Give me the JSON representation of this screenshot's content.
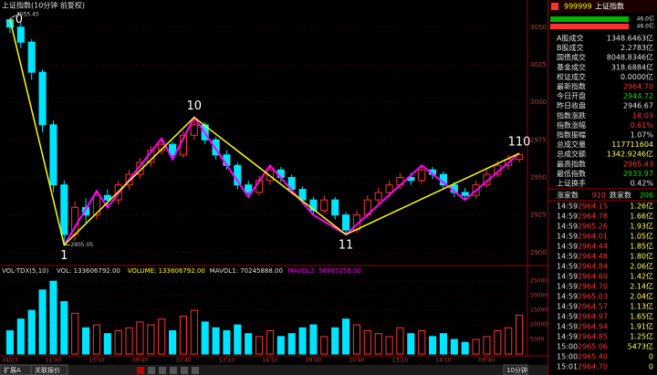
{
  "chart_data": {
    "type": "candlestick",
    "title": "上证指数(10分钟 前复权)",
    "ylim": [
      2895,
      3062
    ],
    "yticks": [
      2900,
      2925,
      2950,
      2975,
      3000,
      3025,
      3050
    ],
    "grid": true,
    "up_color": "#ff3232",
    "down_color": "#00e4ff",
    "open": [
      3055,
      3050,
      3040,
      3020,
      2985,
      2945,
      2912,
      2930,
      2925,
      2938,
      2935,
      2945,
      2952,
      2960,
      2968,
      2972,
      2965,
      2978,
      2985,
      2975,
      2965,
      2958,
      2945,
      2940,
      2948,
      2955,
      2950,
      2942,
      2935,
      2928,
      2935,
      2925,
      2915,
      2925,
      2935,
      2940,
      2945,
      2950,
      2948,
      2955,
      2952,
      2945,
      2940,
      2938,
      2945,
      2952,
      2958,
      2962
    ],
    "high": [
      3056,
      3053,
      3042,
      3022,
      2988,
      2948,
      2934,
      2936,
      2941,
      2942,
      2948,
      2955,
      2963,
      2971,
      2976,
      2974,
      2981,
      2990,
      2987,
      2977,
      2968,
      2960,
      2948,
      2951,
      2958,
      2957,
      2952,
      2944,
      2937,
      2938,
      2937,
      2927,
      2928,
      2938,
      2943,
      2948,
      2953,
      2953,
      2958,
      2957,
      2954,
      2947,
      2943,
      2948,
      2955,
      2961,
      2965,
      2966
    ],
    "low": [
      3046,
      3036,
      3015,
      2980,
      2940,
      2905,
      2908,
      2920,
      2922,
      2930,
      2932,
      2942,
      2949,
      2957,
      2965,
      2962,
      2963,
      2975,
      2972,
      2962,
      2955,
      2942,
      2937,
      2938,
      2945,
      2947,
      2939,
      2932,
      2925,
      2926,
      2922,
      2912,
      2913,
      2923,
      2932,
      2937,
      2942,
      2945,
      2946,
      2949,
      2942,
      2937,
      2935,
      2936,
      2943,
      2950,
      2955,
      2960
    ],
    "close": [
      3050,
      3040,
      3020,
      2985,
      2945,
      2912,
      2930,
      2925,
      2938,
      2935,
      2945,
      2952,
      2960,
      2968,
      2972,
      2965,
      2978,
      2985,
      2975,
      2965,
      2958,
      2945,
      2940,
      2948,
      2955,
      2950,
      2942,
      2935,
      2928,
      2935,
      2925,
      2915,
      2925,
      2935,
      2940,
      2945,
      2950,
      2948,
      2955,
      2952,
      2945,
      2940,
      2938,
      2945,
      2952,
      2958,
      2962,
      2965
    ],
    "x_labels": [
      {
        "index": 0,
        "label": "04/23"
      },
      {
        "index": 4,
        "label": "11:00"
      },
      {
        "index": 8,
        "label": "13:50"
      },
      {
        "index": 12,
        "label": "09:40"
      },
      {
        "index": 16,
        "label": "10:40"
      },
      {
        "index": 20,
        "label": "13:10"
      },
      {
        "index": 24,
        "label": "14:10"
      },
      {
        "index": 28,
        "label": "09:40"
      },
      {
        "index": 32,
        "label": "10:40"
      },
      {
        "index": 36,
        "label": "13:10"
      },
      {
        "index": 40,
        "label": "14:10"
      },
      {
        "index": 44,
        "label": "09:40"
      }
    ],
    "annotations": [
      {
        "text": "3055.45",
        "index": 0,
        "value": 3055.45
      },
      {
        "text": "2905.05",
        "index": 5,
        "value": 2905.05
      }
    ],
    "wave_color": "#ffff00",
    "waves": [
      {
        "label": "0",
        "index": 0,
        "value": 3055
      },
      {
        "label": "1",
        "index": 5,
        "value": 2905
      },
      {
        "label": "10",
        "index": 17,
        "value": 2990
      },
      {
        "label": "11",
        "index": 31,
        "value": 2912
      },
      {
        "label": "110",
        "index": 47,
        "value": 2966
      }
    ],
    "subwaves": {
      "color": "#ff00ff",
      "index": [
        5,
        8,
        9,
        14,
        15,
        17,
        22,
        24,
        28,
        31,
        38,
        42,
        47
      ],
      "values": [
        2905,
        2941,
        2930,
        2976,
        2962,
        2990,
        2937,
        2958,
        2925,
        2912,
        2958,
        2935,
        2966
      ]
    },
    "volume": {
      "header": "VOL-TDX(5,10)",
      "labels": [
        "VOL: 133606792.00",
        "VOLUME: 133606792.00",
        "MAVOL1: 70245888.00",
        "MAVOL2: 58865256.00"
      ],
      "ylim": [
        0,
        26000
      ],
      "yticks": [
        5000,
        10000,
        15000,
        20000,
        25000
      ],
      "values": [
        8000,
        12000,
        15000,
        22000,
        25000,
        18000,
        14000,
        9000,
        10000,
        7000,
        8000,
        9000,
        11000,
        10000,
        12000,
        8000,
        13000,
        15000,
        11000,
        9000,
        8000,
        10000,
        7000,
        6000,
        8000,
        6000,
        7000,
        9000,
        10000,
        6000,
        9000,
        12000,
        10000,
        8000,
        7000,
        6000,
        9000,
        7000,
        8000,
        6000,
        7000,
        5000,
        4000,
        5000,
        6000,
        8000,
        9000,
        13360
      ]
    },
    "period": "10分钟"
  },
  "panel": {
    "code": "999999",
    "name": "上证指数",
    "bars": [
      {
        "label": "46.0亿",
        "color": "#00b400"
      },
      {
        "label": "46.0亿",
        "color": "#ff3232"
      }
    ],
    "stats": [
      {
        "label": "A股成交",
        "value": "1348.6463亿",
        "color": "#e0e0e0"
      },
      {
        "label": "B股成交",
        "value": "2.2783亿",
        "color": "#e0e0e0"
      },
      {
        "label": "国债成交",
        "value": "8048.8346亿",
        "color": "#e0e0e0"
      },
      {
        "label": "基金成交",
        "value": "318.6884亿",
        "color": "#e0e0e0"
      },
      {
        "label": "权证成交",
        "value": "0.0000亿",
        "color": "#e0e0e0"
      },
      {
        "label": "最新指数",
        "value": "2964.70",
        "color": "#ff3232"
      },
      {
        "label": "今日开盘",
        "value": "2944.72",
        "color": "#00e000"
      },
      {
        "label": "昨日收盘",
        "value": "2946.67",
        "color": "#e0e0e0"
      },
      {
        "label": "指数涨跌",
        "value": "18.03",
        "color": "#ff3232"
      },
      {
        "label": "指数涨幅",
        "value": "0.61%",
        "color": "#ff3232"
      },
      {
        "label": "指数振幅",
        "value": "1.07%",
        "color": "#e0e0e0"
      },
      {
        "label": "总成交量",
        "value": "117711604",
        "color": "#ffff60"
      },
      {
        "label": "总成交额",
        "value": "1342.9246亿",
        "color": "#ffff60"
      },
      {
        "label": "最高指数",
        "value": "2965.43",
        "color": "#ff3232"
      },
      {
        "label": "最低指数",
        "value": "2933.97",
        "color": "#00e000"
      },
      {
        "label": "上证换手",
        "value": "0.42%",
        "color": "#e0e0e0"
      }
    ],
    "up_label": "涨家数",
    "up": "910",
    "down_label": "跌家数",
    "down": "206",
    "ticks": [
      [
        "14:59",
        "2964.15",
        "1.26亿"
      ],
      [
        "14:59",
        "2964.78",
        "1.66亿"
      ],
      [
        "14:59",
        "2965.26",
        "1.93亿"
      ],
      [
        "14:59",
        "2964.01",
        "1.05亿"
      ],
      [
        "14:59",
        "2964.44",
        "1.85亿"
      ],
      [
        "14:59",
        "2964.48",
        "1.80亿"
      ],
      [
        "14:59",
        "2964.84",
        "2.06亿"
      ],
      [
        "14:59",
        "2964.60",
        "1.42亿"
      ],
      [
        "14:59",
        "2964.70",
        "2.14亿"
      ],
      [
        "14:59",
        "2965.03",
        "2.04亿"
      ],
      [
        "14:59",
        "2964.57",
        "1.13亿"
      ],
      [
        "14:59",
        "2964.97",
        "1.65亿"
      ],
      [
        "14:59",
        "2964.94",
        "1.91亿"
      ],
      [
        "14:59",
        "2964.85",
        "1.25亿"
      ],
      [
        "15:00",
        "2965.06",
        "5473亿"
      ],
      [
        "15:00",
        "2965.40",
        "0"
      ],
      [
        "15:01",
        "2964.70",
        "0"
      ]
    ]
  },
  "footer": {
    "tabs": [
      "扩展A",
      "关联报价"
    ]
  }
}
